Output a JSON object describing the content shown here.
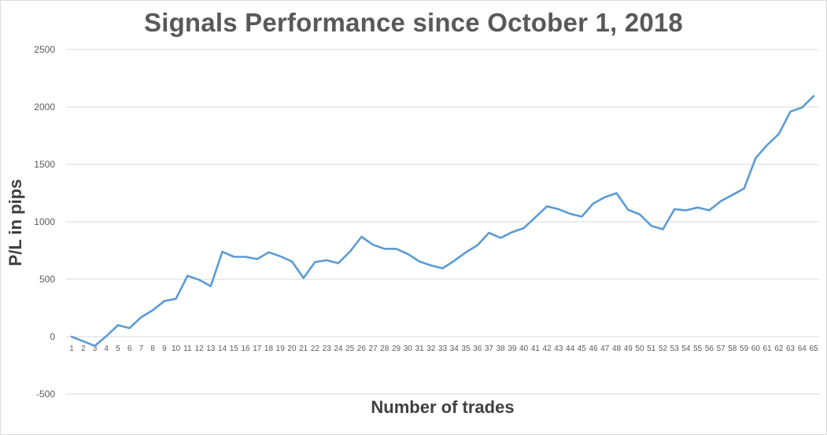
{
  "chart_data": {
    "type": "line",
    "title": "Signals Performance since October 1, 2018",
    "xlabel": "Number of trades",
    "ylabel": "P/L in pips",
    "x": [
      1,
      2,
      3,
      4,
      5,
      6,
      7,
      8,
      9,
      10,
      11,
      12,
      13,
      14,
      15,
      16,
      17,
      18,
      19,
      20,
      21,
      22,
      23,
      24,
      25,
      26,
      27,
      28,
      29,
      30,
      31,
      32,
      33,
      34,
      35,
      36,
      37,
      38,
      39,
      40,
      41,
      42,
      43,
      44,
      45,
      46,
      47,
      48,
      49,
      50,
      51,
      52,
      53,
      54,
      55,
      56,
      57,
      58,
      59,
      60,
      61,
      62,
      63,
      64,
      65
    ],
    "series": [
      {
        "name": "",
        "color": "#5b9bd5",
        "values": [
          0,
          -40,
          -80,
          5,
          100,
          75,
          170,
          230,
          310,
          330,
          530,
          495,
          440,
          740,
          695,
          695,
          675,
          735,
          700,
          655,
          510,
          650,
          665,
          640,
          740,
          870,
          800,
          765,
          765,
          720,
          655,
          620,
          595,
          660,
          735,
          795,
          905,
          860,
          910,
          945,
          1040,
          1135,
          1110,
          1070,
          1045,
          1160,
          1215,
          1250,
          1105,
          1065,
          965,
          935,
          1110,
          1100,
          1125,
          1100,
          1180,
          1235,
          1290,
          1555,
          1670,
          1765,
          1960,
          1995,
          2095
        ]
      }
    ],
    "ylim": [
      -500,
      2500
    ],
    "yticks": [
      -500,
      0,
      500,
      1000,
      1500,
      2000,
      2500
    ],
    "grid": true,
    "legend": "none"
  }
}
